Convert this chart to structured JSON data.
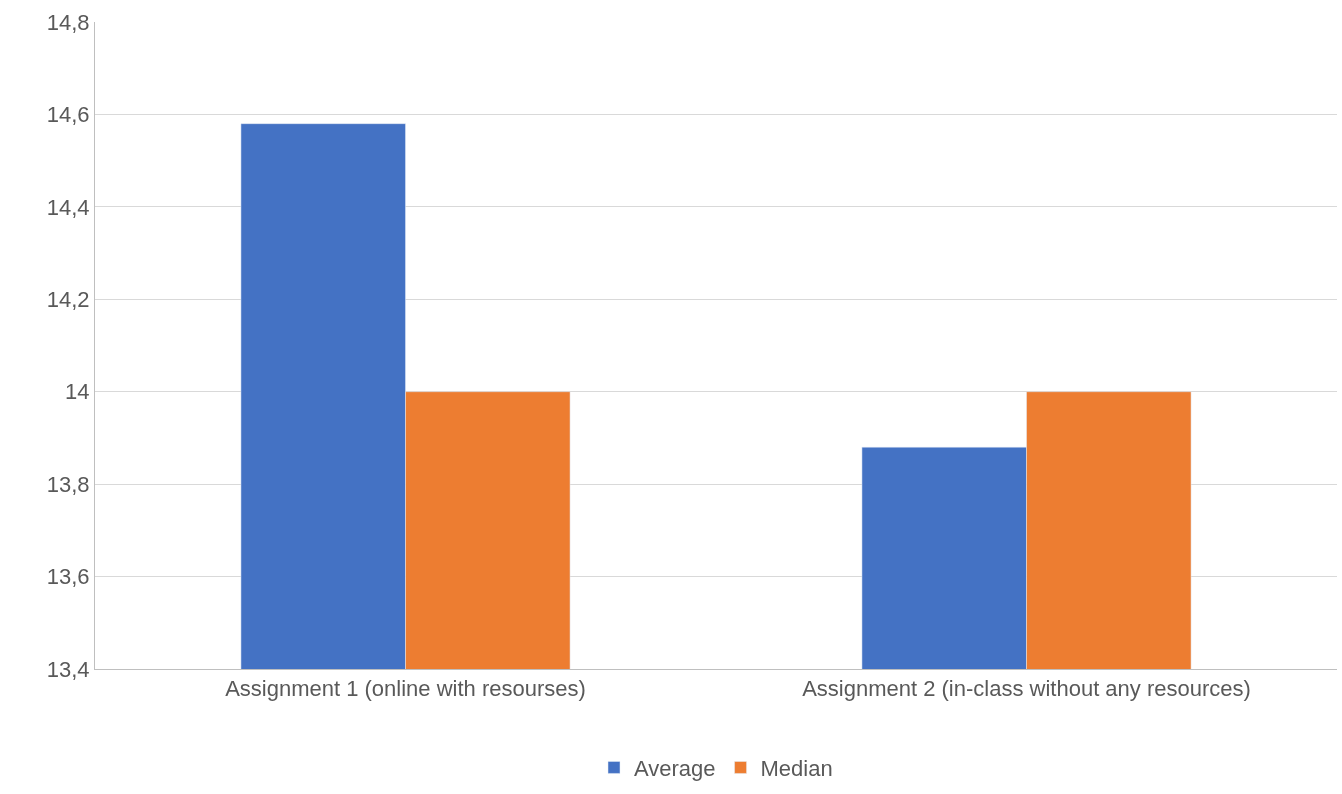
{
  "chart_data": {
    "type": "bar",
    "categories": [
      "Assignment 1 (online with resourses)",
      "Assignment 2 (in-class without any resources)"
    ],
    "series": [
      {
        "name": "Average",
        "color": "#4472c4",
        "values": [
          14.58,
          13.88
        ]
      },
      {
        "name": "Median",
        "color": "#ed7d31",
        "values": [
          14.0,
          14.0
        ]
      }
    ],
    "ylim": [
      13.4,
      14.8
    ],
    "yticks": [
      {
        "value": 13.4,
        "label": "13,4"
      },
      {
        "value": 13.6,
        "label": "13,6"
      },
      {
        "value": 13.8,
        "label": "13,8"
      },
      14,
      {
        "value": 14.2,
        "label": "14,2"
      },
      {
        "value": 14.4,
        "label": "14,4"
      },
      {
        "value": 14.6,
        "label": "14,6"
      },
      {
        "value": 14.8,
        "label": "14,8"
      }
    ],
    "grid": "y",
    "legend": "bottom"
  }
}
